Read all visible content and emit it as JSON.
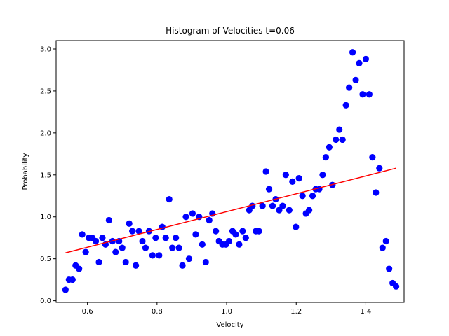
{
  "chart_data": {
    "type": "scatter",
    "title": "Histogram of Velocities t=0.06",
    "xlabel": "Velocity",
    "ylabel": "Probability",
    "xlim": [
      0.51,
      1.51
    ],
    "ylim": [
      -0.02,
      3.1
    ],
    "xticks": [
      0.6,
      0.8,
      1.0,
      1.2,
      1.4
    ],
    "xtick_labels": [
      "0.6",
      "0.8",
      "1.0",
      "1.2",
      "1.4"
    ],
    "yticks": [
      0.0,
      0.5,
      1.0,
      1.5,
      2.0,
      2.5,
      3.0
    ],
    "ytick_labels": [
      "0.0",
      "0.5",
      "1.0",
      "1.5",
      "2.0",
      "2.5",
      "3.0"
    ],
    "grid": false,
    "colors": {
      "points": "#0000ff",
      "fit_line": "#ff0000"
    },
    "series": [
      {
        "kind": "points",
        "x": [
          0.537,
          0.547,
          0.557,
          0.566,
          0.576,
          0.585,
          0.595,
          0.604,
          0.614,
          0.624,
          0.633,
          0.643,
          0.652,
          0.662,
          0.672,
          0.681,
          0.691,
          0.7,
          0.71,
          0.72,
          0.729,
          0.739,
          0.748,
          0.758,
          0.767,
          0.777,
          0.787,
          0.796,
          0.806,
          0.815,
          0.825,
          0.835,
          0.844,
          0.854,
          0.863,
          0.873,
          0.883,
          0.892,
          0.902,
          0.911,
          0.921,
          0.93,
          0.94,
          0.95,
          0.959,
          0.969,
          0.978,
          0.988,
          0.998,
          1.007,
          1.017,
          1.026,
          1.036,
          1.046,
          1.055,
          1.065,
          1.074,
          1.084,
          1.093,
          1.103,
          1.113,
          1.122,
          1.132,
          1.141,
          1.151,
          1.161,
          1.17,
          1.18,
          1.189,
          1.199,
          1.208,
          1.218,
          1.228,
          1.237,
          1.247,
          1.256,
          1.266,
          1.276,
          1.285,
          1.295,
          1.304,
          1.314,
          1.324,
          1.333,
          1.343,
          1.352,
          1.362,
          1.371,
          1.381,
          1.391,
          1.4,
          1.41,
          1.419,
          1.429,
          1.439,
          1.448,
          1.458,
          1.467,
          1.477,
          1.487
        ],
        "y": [
          0.13,
          0.25,
          0.25,
          0.42,
          0.38,
          0.79,
          0.58,
          0.75,
          0.75,
          0.71,
          0.46,
          0.75,
          0.67,
          0.96,
          0.71,
          0.58,
          0.71,
          0.63,
          0.46,
          0.92,
          0.83,
          0.42,
          0.83,
          0.71,
          0.63,
          0.83,
          0.54,
          0.75,
          0.54,
          0.88,
          0.75,
          1.21,
          0.63,
          0.75,
          0.63,
          0.42,
          1.0,
          0.5,
          1.04,
          0.79,
          1.0,
          0.67,
          0.46,
          0.96,
          1.04,
          0.83,
          0.71,
          0.67,
          0.67,
          0.71,
          0.83,
          0.79,
          0.67,
          0.83,
          0.75,
          1.08,
          1.13,
          0.83,
          0.83,
          1.13,
          1.54,
          1.33,
          1.13,
          1.21,
          1.08,
          1.13,
          1.5,
          1.08,
          1.42,
          0.88,
          1.46,
          1.25,
          1.04,
          1.08,
          1.25,
          1.33,
          1.33,
          1.5,
          1.71,
          1.83,
          1.38,
          1.92,
          2.04,
          1.92,
          2.33,
          2.54,
          2.96,
          2.63,
          2.83,
          2.46,
          2.88,
          2.46,
          1.71,
          1.29,
          1.58,
          0.63,
          0.71,
          0.38,
          0.21,
          0.17
        ]
      },
      {
        "kind": "fit-line",
        "x": [
          0.537,
          1.487
        ],
        "y": [
          0.57,
          1.58
        ]
      }
    ]
  }
}
